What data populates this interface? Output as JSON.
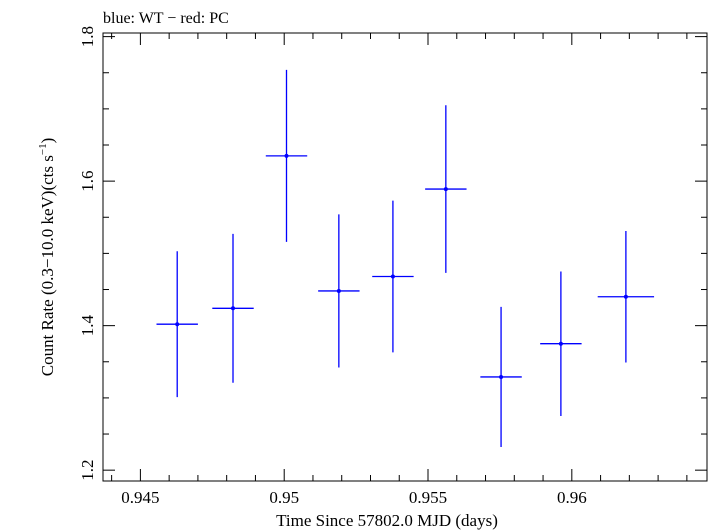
{
  "chart_data": {
    "type": "scatter",
    "title": "blue: WT − red: PC",
    "xlabel": "Time Since 57802.0 MJD (days)",
    "ylabel_main": "Count Rate (0.3−10.0 keV)(cts s",
    "ylabel_sup": "−1",
    "ylabel_close": ")",
    "xlim": [
      0.9437,
      0.9647
    ],
    "ylim": [
      1.185,
      1.805
    ],
    "xticks": [
      0.945,
      0.95,
      0.955,
      0.96
    ],
    "xtick_labels": [
      "0.945",
      "0.95",
      "0.955",
      "0.96"
    ],
    "yticks": [
      1.2,
      1.4,
      1.6,
      1.8
    ],
    "ytick_labels": [
      "1.2",
      "1.4",
      "1.6",
      "1.8"
    ],
    "grid": false,
    "series": [
      {
        "color": "#0000ff",
        "points": [
          {
            "x": 0.94628,
            "xerr": 0.00072,
            "y": 1.402,
            "yerr": 0.101
          },
          {
            "x": 0.94822,
            "xerr": 0.00072,
            "y": 1.424,
            "yerr": 0.103
          },
          {
            "x": 0.95008,
            "xerr": 0.00072,
            "y": 1.635,
            "yerr": 0.119
          },
          {
            "x": 0.9519,
            "xerr": 0.00072,
            "y": 1.448,
            "yerr": 0.106
          },
          {
            "x": 0.95378,
            "xerr": 0.00072,
            "y": 1.468,
            "yerr": 0.105
          },
          {
            "x": 0.95562,
            "xerr": 0.00072,
            "y": 1.589,
            "yerr": 0.116
          },
          {
            "x": 0.95754,
            "xerr": 0.00072,
            "y": 1.329,
            "yerr": 0.097
          },
          {
            "x": 0.95962,
            "xerr": 0.00072,
            "y": 1.375,
            "yerr": 0.1
          },
          {
            "x": 0.96188,
            "xerr": 0.00098,
            "y": 1.44,
            "yerr": 0.091
          }
        ]
      }
    ]
  }
}
